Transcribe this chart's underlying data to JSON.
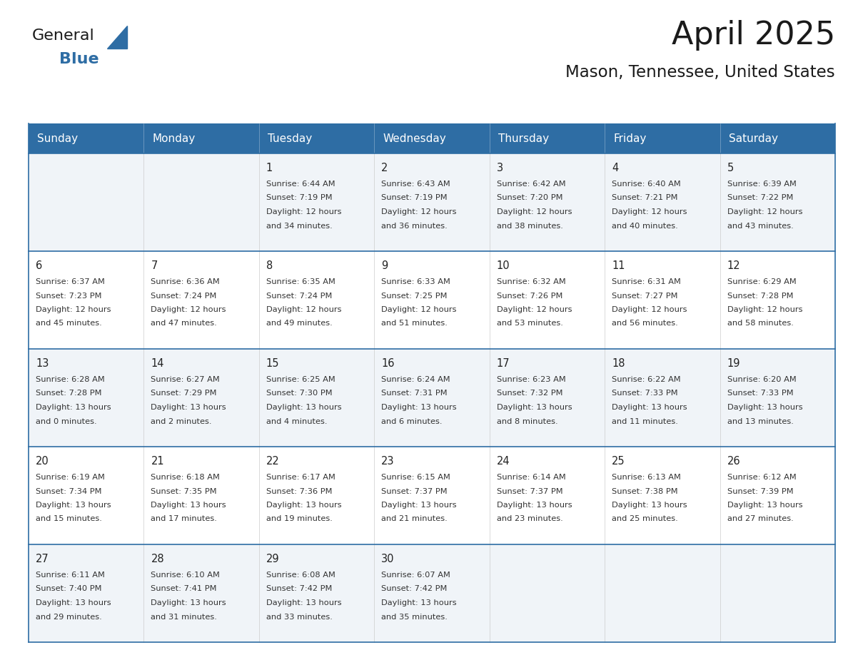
{
  "title": "April 2025",
  "subtitle": "Mason, Tennessee, United States",
  "days_of_week": [
    "Sunday",
    "Monday",
    "Tuesday",
    "Wednesday",
    "Thursday",
    "Friday",
    "Saturday"
  ],
  "header_bg": "#2E6DA4",
  "header_text": "#FFFFFF",
  "cell_bg_light": "#F0F4F8",
  "cell_bg_white": "#FFFFFF",
  "cell_border_color": "#2E6DA4",
  "cell_inner_border": "#AAAAAA",
  "day_number_color": "#222222",
  "text_color": "#333333",
  "title_color": "#1a1a1a",
  "logo_general_color": "#1a1a1a",
  "logo_blue_color": "#2E6DA4",
  "weeks": [
    [
      {
        "day": "",
        "lines": []
      },
      {
        "day": "",
        "lines": []
      },
      {
        "day": "1",
        "lines": [
          "Sunrise: 6:44 AM",
          "Sunset: 7:19 PM",
          "Daylight: 12 hours",
          "and 34 minutes."
        ]
      },
      {
        "day": "2",
        "lines": [
          "Sunrise: 6:43 AM",
          "Sunset: 7:19 PM",
          "Daylight: 12 hours",
          "and 36 minutes."
        ]
      },
      {
        "day": "3",
        "lines": [
          "Sunrise: 6:42 AM",
          "Sunset: 7:20 PM",
          "Daylight: 12 hours",
          "and 38 minutes."
        ]
      },
      {
        "day": "4",
        "lines": [
          "Sunrise: 6:40 AM",
          "Sunset: 7:21 PM",
          "Daylight: 12 hours",
          "and 40 minutes."
        ]
      },
      {
        "day": "5",
        "lines": [
          "Sunrise: 6:39 AM",
          "Sunset: 7:22 PM",
          "Daylight: 12 hours",
          "and 43 minutes."
        ]
      }
    ],
    [
      {
        "day": "6",
        "lines": [
          "Sunrise: 6:37 AM",
          "Sunset: 7:23 PM",
          "Daylight: 12 hours",
          "and 45 minutes."
        ]
      },
      {
        "day": "7",
        "lines": [
          "Sunrise: 6:36 AM",
          "Sunset: 7:24 PM",
          "Daylight: 12 hours",
          "and 47 minutes."
        ]
      },
      {
        "day": "8",
        "lines": [
          "Sunrise: 6:35 AM",
          "Sunset: 7:24 PM",
          "Daylight: 12 hours",
          "and 49 minutes."
        ]
      },
      {
        "day": "9",
        "lines": [
          "Sunrise: 6:33 AM",
          "Sunset: 7:25 PM",
          "Daylight: 12 hours",
          "and 51 minutes."
        ]
      },
      {
        "day": "10",
        "lines": [
          "Sunrise: 6:32 AM",
          "Sunset: 7:26 PM",
          "Daylight: 12 hours",
          "and 53 minutes."
        ]
      },
      {
        "day": "11",
        "lines": [
          "Sunrise: 6:31 AM",
          "Sunset: 7:27 PM",
          "Daylight: 12 hours",
          "and 56 minutes."
        ]
      },
      {
        "day": "12",
        "lines": [
          "Sunrise: 6:29 AM",
          "Sunset: 7:28 PM",
          "Daylight: 12 hours",
          "and 58 minutes."
        ]
      }
    ],
    [
      {
        "day": "13",
        "lines": [
          "Sunrise: 6:28 AM",
          "Sunset: 7:28 PM",
          "Daylight: 13 hours",
          "and 0 minutes."
        ]
      },
      {
        "day": "14",
        "lines": [
          "Sunrise: 6:27 AM",
          "Sunset: 7:29 PM",
          "Daylight: 13 hours",
          "and 2 minutes."
        ]
      },
      {
        "day": "15",
        "lines": [
          "Sunrise: 6:25 AM",
          "Sunset: 7:30 PM",
          "Daylight: 13 hours",
          "and 4 minutes."
        ]
      },
      {
        "day": "16",
        "lines": [
          "Sunrise: 6:24 AM",
          "Sunset: 7:31 PM",
          "Daylight: 13 hours",
          "and 6 minutes."
        ]
      },
      {
        "day": "17",
        "lines": [
          "Sunrise: 6:23 AM",
          "Sunset: 7:32 PM",
          "Daylight: 13 hours",
          "and 8 minutes."
        ]
      },
      {
        "day": "18",
        "lines": [
          "Sunrise: 6:22 AM",
          "Sunset: 7:33 PM",
          "Daylight: 13 hours",
          "and 11 minutes."
        ]
      },
      {
        "day": "19",
        "lines": [
          "Sunrise: 6:20 AM",
          "Sunset: 7:33 PM",
          "Daylight: 13 hours",
          "and 13 minutes."
        ]
      }
    ],
    [
      {
        "day": "20",
        "lines": [
          "Sunrise: 6:19 AM",
          "Sunset: 7:34 PM",
          "Daylight: 13 hours",
          "and 15 minutes."
        ]
      },
      {
        "day": "21",
        "lines": [
          "Sunrise: 6:18 AM",
          "Sunset: 7:35 PM",
          "Daylight: 13 hours",
          "and 17 minutes."
        ]
      },
      {
        "day": "22",
        "lines": [
          "Sunrise: 6:17 AM",
          "Sunset: 7:36 PM",
          "Daylight: 13 hours",
          "and 19 minutes."
        ]
      },
      {
        "day": "23",
        "lines": [
          "Sunrise: 6:15 AM",
          "Sunset: 7:37 PM",
          "Daylight: 13 hours",
          "and 21 minutes."
        ]
      },
      {
        "day": "24",
        "lines": [
          "Sunrise: 6:14 AM",
          "Sunset: 7:37 PM",
          "Daylight: 13 hours",
          "and 23 minutes."
        ]
      },
      {
        "day": "25",
        "lines": [
          "Sunrise: 6:13 AM",
          "Sunset: 7:38 PM",
          "Daylight: 13 hours",
          "and 25 minutes."
        ]
      },
      {
        "day": "26",
        "lines": [
          "Sunrise: 6:12 AM",
          "Sunset: 7:39 PM",
          "Daylight: 13 hours",
          "and 27 minutes."
        ]
      }
    ],
    [
      {
        "day": "27",
        "lines": [
          "Sunrise: 6:11 AM",
          "Sunset: 7:40 PM",
          "Daylight: 13 hours",
          "and 29 minutes."
        ]
      },
      {
        "day": "28",
        "lines": [
          "Sunrise: 6:10 AM",
          "Sunset: 7:41 PM",
          "Daylight: 13 hours",
          "and 31 minutes."
        ]
      },
      {
        "day": "29",
        "lines": [
          "Sunrise: 6:08 AM",
          "Sunset: 7:42 PM",
          "Daylight: 13 hours",
          "and 33 minutes."
        ]
      },
      {
        "day": "30",
        "lines": [
          "Sunrise: 6:07 AM",
          "Sunset: 7:42 PM",
          "Daylight: 13 hours",
          "and 35 minutes."
        ]
      },
      {
        "day": "",
        "lines": []
      },
      {
        "day": "",
        "lines": []
      },
      {
        "day": "",
        "lines": []
      }
    ]
  ]
}
